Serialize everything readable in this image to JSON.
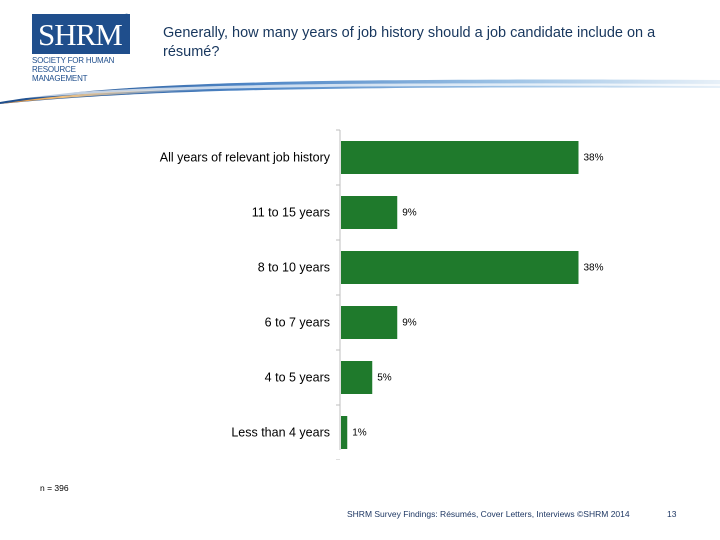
{
  "logo": {
    "wordmark": "SHRM",
    "registered": "®",
    "subtitle": "Society for Human Resource Management"
  },
  "slide_title": "Generally, how many years of job history should a job candidate include on a résumé?",
  "chart_data": {
    "type": "bar",
    "orientation": "horizontal",
    "title": "",
    "categories": [
      "All years of relevant job history",
      "11 to 15 years",
      "8 to 10 years",
      "6 to 7 years",
      "4 to 5 years",
      "Less than 4 years"
    ],
    "values": [
      38,
      9,
      38,
      9,
      5,
      1
    ],
    "data_labels": [
      "38%",
      "9%",
      "38%",
      "9%",
      "5%",
      "1%"
    ],
    "xlim": [
      0,
      40
    ],
    "unit": "%",
    "bar_color": "#1f7a2c",
    "grid": false
  },
  "sample_note": "n = 396",
  "footer": {
    "source": "SHRM Survey Findings: Résumés, Cover Letters, Interviews ©SHRM 2014",
    "page_number": "13"
  },
  "colors": {
    "brand_blue": "#1f4e8c",
    "title_text": "#17365d",
    "bar_green": "#1f7a2c"
  }
}
